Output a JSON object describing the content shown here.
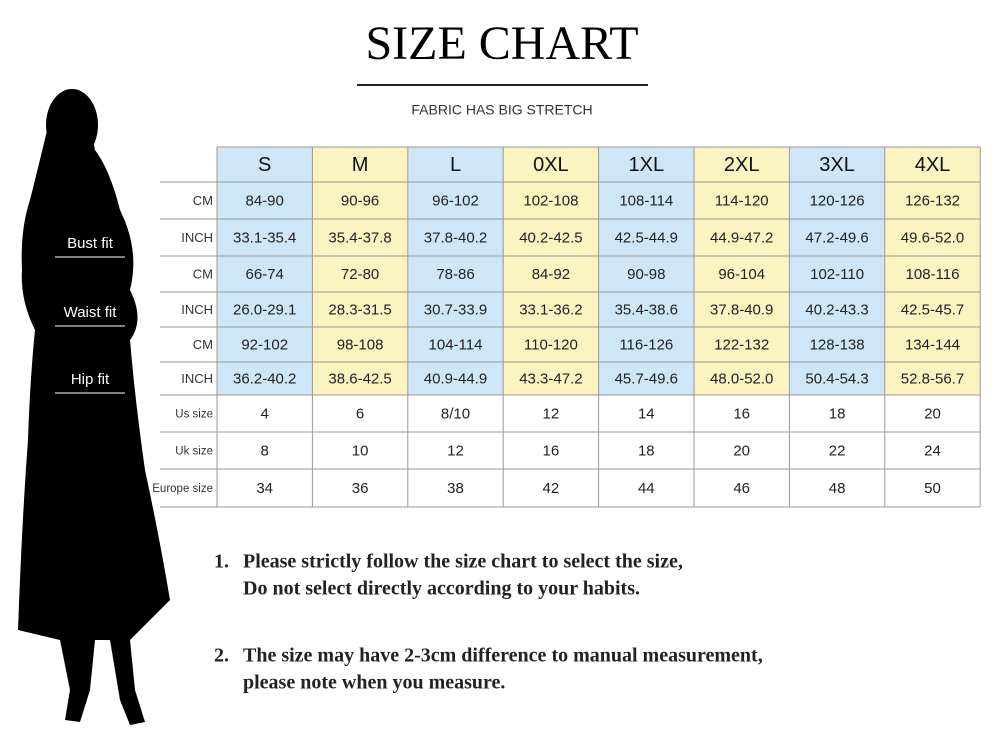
{
  "header": {
    "title": "SIZE CHART",
    "subtitle": "FABRIC HAS BIG STRETCH"
  },
  "table": {
    "columns": [
      "S",
      "M",
      "L",
      "0XL",
      "1XL",
      "2XL",
      "3XL",
      "4XL"
    ],
    "rows": [
      {
        "label": "CM",
        "cells": [
          "84-90",
          "90-96",
          "96-102",
          "102-108",
          "108-114",
          "114-120",
          "120-126",
          "126-132"
        ]
      },
      {
        "label": "INCH",
        "cells": [
          "33.1-35.4",
          "35.4-37.8",
          "37.8-40.2",
          "40.2-42.5",
          "42.5-44.9",
          "44.9-47.2",
          "47.2-49.6",
          "49.6-52.0"
        ]
      },
      {
        "label": "CM",
        "cells": [
          "66-74",
          "72-80",
          "78-86",
          "84-92",
          "90-98",
          "96-104",
          "102-110",
          "108-116"
        ]
      },
      {
        "label": "INCH",
        "cells": [
          "26.0-29.1",
          "28.3-31.5",
          "30.7-33.9",
          "33.1-36.2",
          "35.4-38.6",
          "37.8-40.9",
          "40.2-43.3",
          "42.5-45.7"
        ]
      },
      {
        "label": "CM",
        "cells": [
          "92-102",
          "98-108",
          "104-114",
          "110-120",
          "116-126",
          "122-132",
          "128-138",
          "134-144"
        ]
      },
      {
        "label": "INCH",
        "cells": [
          "36.2-40.2",
          "38.6-42.5",
          "40.9-44.9",
          "43.3-47.2",
          "45.7-49.6",
          "48.0-52.0",
          "50.4-54.3",
          "52.8-56.7"
        ]
      },
      {
        "label": "Us size",
        "cells": [
          "4",
          "6",
          "8/10",
          "12",
          "14",
          "16",
          "18",
          "20"
        ]
      },
      {
        "label": "Uk size",
        "cells": [
          "8",
          "10",
          "12",
          "16",
          "18",
          "20",
          "22",
          "24"
        ]
      },
      {
        "label": "Europe size",
        "cells": [
          "34",
          "36",
          "38",
          "42",
          "44",
          "46",
          "48",
          "50"
        ]
      }
    ]
  },
  "body_labels": [
    "Bust fit",
    "Waist fit",
    "Hip fit"
  ],
  "notes": [
    {
      "number": "1.",
      "lines": [
        "Please strictly follow the size chart to select the size,",
        "Do not select directly according to your habits."
      ]
    },
    {
      "number": "2.",
      "lines": [
        "The size may have 2-3cm difference  to manual measurement,",
        "please note when you measure."
      ]
    }
  ]
}
